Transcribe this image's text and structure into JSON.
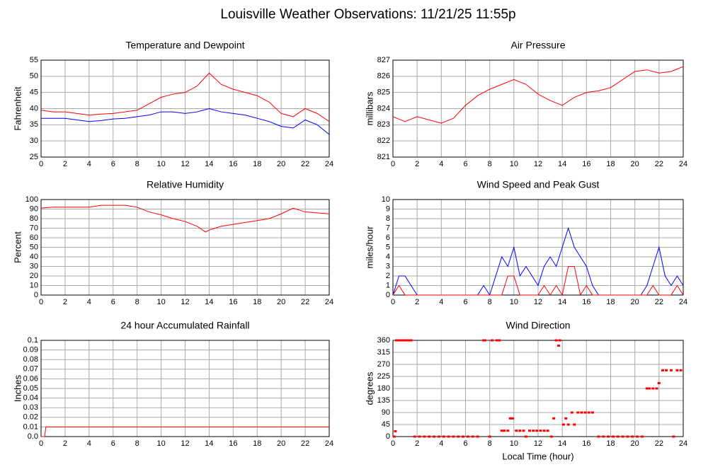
{
  "title": "Louisville Weather Observations: 11/21/25 11:55p",
  "chart_data": [
    {
      "type": "line",
      "title": "Temperature and Dewpoint",
      "y_label": "Fahrenheit",
      "x": [
        0,
        1,
        2,
        3,
        4,
        5,
        6,
        7,
        8,
        9,
        10,
        11,
        12,
        13,
        13.5,
        14,
        15,
        16,
        17,
        18,
        19,
        20,
        21,
        22,
        23,
        24
      ],
      "series": [
        {
          "color": "#ff0000",
          "values": [
            39.5,
            39,
            39,
            38.5,
            38,
            38.3,
            38.5,
            39,
            39.5,
            41.5,
            43.5,
            44.5,
            45,
            47,
            49,
            51,
            47.5,
            46,
            45,
            44,
            42,
            38.5,
            37.5,
            40,
            38.5,
            36
          ]
        },
        {
          "color": "#0000ff",
          "values": [
            37,
            37,
            37,
            36.5,
            36,
            36.3,
            36.8,
            37,
            37.5,
            38,
            39,
            39,
            38.5,
            39,
            39.5,
            40,
            39,
            38.5,
            38,
            37,
            36,
            34.5,
            34,
            36.5,
            35,
            32
          ]
        }
      ],
      "xlim": [
        0,
        24
      ],
      "xticks": [
        0,
        2,
        4,
        6,
        8,
        10,
        12,
        14,
        16,
        18,
        20,
        22,
        24
      ],
      "ylim": [
        25,
        55
      ],
      "yticks": [
        25,
        30,
        35,
        40,
        45,
        50,
        55
      ],
      "grid": true
    },
    {
      "type": "line",
      "title": "Air Pressure",
      "y_label": "millibars",
      "x": [
        0,
        1,
        2,
        3,
        4,
        5,
        6,
        7,
        8,
        9,
        10,
        11,
        12,
        13,
        14,
        15,
        16,
        17,
        18,
        19,
        20,
        21,
        22,
        23,
        24
      ],
      "series": [
        {
          "color": "#ff0000",
          "values": [
            823.5,
            823.2,
            823.5,
            823.3,
            823.1,
            823.4,
            824.2,
            824.8,
            825.2,
            825.5,
            825.8,
            825.5,
            824.9,
            824.5,
            824.2,
            824.7,
            825,
            825.1,
            825.3,
            825.8,
            826.3,
            826.4,
            826.2,
            826.3,
            826.6
          ]
        }
      ],
      "xlim": [
        0,
        24
      ],
      "xticks": [
        0,
        2,
        4,
        6,
        8,
        10,
        12,
        14,
        16,
        18,
        20,
        22,
        24
      ],
      "ylim": [
        821,
        827
      ],
      "yticks": [
        821,
        822,
        823,
        824,
        825,
        826,
        827
      ],
      "grid": true
    },
    {
      "type": "line",
      "title": "Relative Humidity",
      "y_label": "Percent",
      "x": [
        0,
        1,
        2,
        3,
        4,
        5,
        6,
        7,
        8,
        9,
        10,
        11,
        12,
        13,
        13.7,
        14,
        15,
        16,
        17,
        18,
        19,
        20,
        21,
        22,
        23,
        24
      ],
      "series": [
        {
          "color": "#ff0000",
          "values": [
            91,
            92,
            92,
            92,
            92,
            94,
            94,
            94,
            92,
            87,
            84,
            80,
            77,
            72,
            66,
            68,
            72,
            74,
            76,
            78,
            80,
            85,
            91,
            87,
            86,
            85
          ]
        }
      ],
      "xlim": [
        0,
        24
      ],
      "xticks": [
        0,
        2,
        4,
        6,
        8,
        10,
        12,
        14,
        16,
        18,
        20,
        22,
        24
      ],
      "ylim": [
        0,
        100
      ],
      "yticks": [
        0,
        10,
        20,
        30,
        40,
        50,
        60,
        70,
        80,
        90,
        100
      ],
      "grid": true
    },
    {
      "type": "line",
      "title": "Wind Speed and Peak Gust",
      "y_label": "miles/hour",
      "x": [
        0,
        0.5,
        1,
        1.5,
        2,
        2.5,
        3,
        3.5,
        4,
        4.5,
        5,
        5.5,
        6,
        6.5,
        7,
        7.5,
        8,
        8.5,
        9,
        9.5,
        10,
        10.5,
        11,
        11.5,
        12,
        12.5,
        13,
        13.5,
        14,
        14.5,
        15,
        15.5,
        16,
        16.5,
        17,
        17.5,
        18,
        18.5,
        19,
        19.5,
        20,
        20.5,
        21,
        21.5,
        22,
        22.5,
        23,
        23.5,
        24
      ],
      "series": [
        {
          "color": "#0000ff",
          "values": [
            0,
            2,
            2,
            1,
            0,
            0,
            0,
            0,
            0,
            0,
            0,
            0,
            0,
            0,
            0,
            1,
            0,
            2,
            4,
            3,
            5,
            2,
            3,
            2,
            1,
            3,
            4,
            3,
            5,
            7,
            5,
            4,
            3,
            1,
            0,
            0,
            0,
            0,
            0,
            0,
            0,
            0,
            1,
            3,
            5,
            2,
            1,
            2,
            1
          ]
        },
        {
          "color": "#ff0000",
          "values": [
            0,
            1,
            0,
            0,
            0,
            0,
            0,
            0,
            0,
            0,
            0,
            0,
            0,
            0,
            0,
            0,
            0,
            0,
            0,
            2,
            2,
            0,
            0,
            0,
            0,
            1,
            0,
            1,
            0,
            3,
            3,
            0,
            1,
            0,
            0,
            0,
            0,
            0,
            0,
            0,
            0,
            0,
            0,
            1,
            0,
            0,
            0,
            1,
            0
          ]
        }
      ],
      "xlim": [
        0,
        24
      ],
      "xticks": [
        0,
        2,
        4,
        6,
        8,
        10,
        12,
        14,
        16,
        18,
        20,
        22,
        24
      ],
      "ylim": [
        0,
        10
      ],
      "yticks": [
        0,
        1,
        2,
        3,
        4,
        5,
        6,
        7,
        8,
        9,
        10
      ],
      "grid": true
    },
    {
      "type": "line",
      "title": "24 hour Accumulated Rainfall",
      "y_label": "Inches",
      "x": [
        0,
        0.3,
        0.4,
        24
      ],
      "series": [
        {
          "color": "#ff0000",
          "values": [
            0,
            0,
            0.01,
            0.01
          ]
        }
      ],
      "xlim": [
        0,
        24
      ],
      "xticks": [
        0,
        2,
        4,
        6,
        8,
        10,
        12,
        14,
        16,
        18,
        20,
        22,
        24
      ],
      "ylim": [
        0,
        0.1
      ],
      "yticks": [
        {
          "value": 0,
          "label": "0.0"
        },
        0.01,
        0.02,
        0.03,
        0.04,
        0.05,
        0.06,
        0.07,
        0.08,
        0.09,
        0.1
      ],
      "grid": true
    },
    {
      "type": "scatter",
      "title": "Wind Direction",
      "y_label": "degrees",
      "x_label": "Local Time (hour)",
      "x": [
        0.1,
        0.2,
        0.3,
        0.5,
        0.7,
        0.9,
        1.1,
        1.3,
        1.5,
        1.8,
        2.2,
        2.6,
        3,
        3.4,
        3.8,
        4.2,
        4.6,
        5,
        5.4,
        5.8,
        6.2,
        6.6,
        7,
        7.5,
        7.6,
        8,
        8.2,
        8.6,
        8.8,
        9,
        9.2,
        9.5,
        9.7,
        9.9,
        10.2,
        10.5,
        10.8,
        11,
        11.3,
        11.6,
        11.9,
        12.2,
        12.5,
        12.8,
        13.1,
        13.3,
        13.5,
        13.7,
        13.8,
        14.1,
        14.3,
        14.5,
        14.8,
        15,
        15.3,
        15.6,
        15.9,
        16.2,
        16.5,
        17,
        17.4,
        17.8,
        18.2,
        18.6,
        19,
        19.4,
        19.8,
        20.2,
        20.6,
        21,
        21.2,
        21.5,
        21.8,
        22,
        22.3,
        22.6,
        23,
        23.2,
        23.5,
        23.8
      ],
      "series": [
        {
          "color": "#ff0000",
          "values": [
            0,
            20,
            360,
            360,
            360,
            360,
            360,
            360,
            360,
            0,
            0,
            0,
            0,
            0,
            0,
            0,
            0,
            0,
            0,
            0,
            0,
            0,
            0,
            360,
            360,
            0,
            360,
            360,
            360,
            22,
            22,
            22,
            68,
            68,
            22,
            22,
            22,
            0,
            22,
            22,
            22,
            22,
            22,
            22,
            0,
            68,
            360,
            340,
            360,
            45,
            68,
            45,
            90,
            45,
            90,
            90,
            90,
            90,
            90,
            0,
            0,
            0,
            0,
            0,
            0,
            0,
            0,
            0,
            0,
            180,
            180,
            180,
            180,
            200,
            248,
            248,
            248,
            0,
            248,
            248
          ]
        }
      ],
      "xlim": [
        0,
        24
      ],
      "xticks": [
        0,
        2,
        4,
        6,
        8,
        10,
        12,
        14,
        16,
        18,
        20,
        22,
        24
      ],
      "ylim": [
        0,
        360
      ],
      "yticks": [
        0,
        45,
        90,
        135,
        180,
        225,
        270,
        315,
        360
      ],
      "grid": true
    }
  ]
}
